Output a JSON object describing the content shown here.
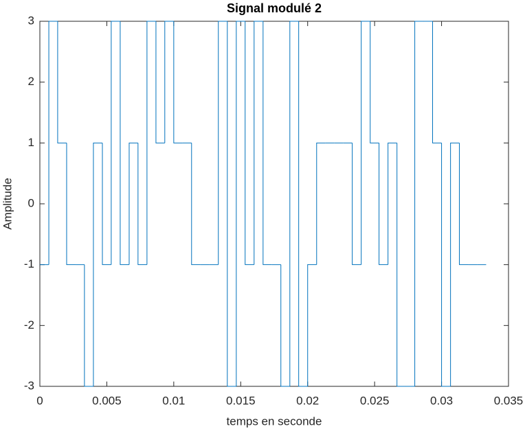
{
  "chart_data": {
    "type": "stairs",
    "title": "Signal modulé 2",
    "xlabel": "temps en seconde",
    "ylabel": "Amplitude",
    "x": [
      0,
      0.00067,
      0.00133,
      0.002,
      0.00267,
      0.00333,
      0.004,
      0.00467,
      0.00533,
      0.006,
      0.00667,
      0.00733,
      0.008,
      0.00867,
      0.00933,
      0.01,
      0.01067,
      0.01133,
      0.012,
      0.01267,
      0.01333,
      0.014,
      0.01467,
      0.01533,
      0.016,
      0.01667,
      0.01733,
      0.018,
      0.01867,
      0.01933,
      0.02,
      0.02067,
      0.02133,
      0.022,
      0.02267,
      0.02333,
      0.024,
      0.02467,
      0.02533,
      0.026,
      0.02667,
      0.02733,
      0.028,
      0.02867,
      0.02933,
      0.03,
      0.03067,
      0.03133,
      0.032,
      0.03267,
      0.03333
    ],
    "values": [
      -1,
      3,
      1,
      -1,
      -1,
      -3,
      1,
      -1,
      3,
      -1,
      1,
      -1,
      3,
      1,
      3,
      1,
      1,
      -1,
      -1,
      -1,
      3,
      -3,
      3,
      -1,
      3,
      -1,
      -1,
      -3,
      3,
      -3,
      -1,
      1,
      1,
      1,
      1,
      -1,
      3,
      1,
      -1,
      1,
      -3,
      -3,
      3,
      3,
      1,
      -3,
      1,
      -1,
      -1,
      -1,
      -1
    ],
    "color": "#0072bd",
    "xlim": [
      0,
      0.035
    ],
    "xticks": [
      0,
      0.005,
      0.01,
      0.015,
      0.02,
      0.025,
      0.03,
      0.035
    ],
    "ylim": [
      -3,
      3
    ],
    "yticks": [
      -3,
      -2,
      -1,
      0,
      1,
      2,
      3
    ],
    "grid": false
  }
}
